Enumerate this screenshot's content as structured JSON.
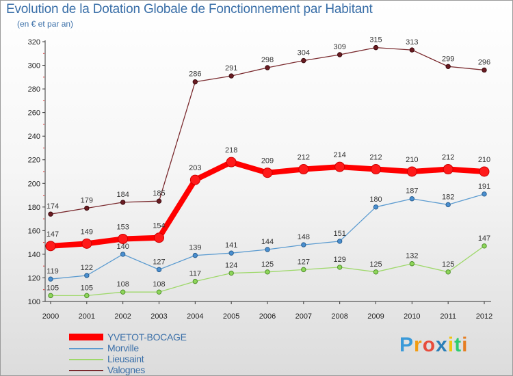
{
  "header": {
    "title": "Evolution de la Dotation Globale de Fonctionnement par Habitant",
    "subtitle": "(en € et par an)"
  },
  "chart_data": {
    "type": "line",
    "title": "Evolution de la Dotation Globale de Fonctionnement par Habitant",
    "subtitle": "(en € et par an)",
    "xlabel": "",
    "ylabel": "",
    "x": [
      "2000",
      "2001",
      "2002",
      "2003",
      "2004",
      "2005",
      "2006",
      "2007",
      "2008",
      "2009",
      "2010",
      "2011",
      "2012"
    ],
    "ylim": [
      100,
      320
    ],
    "yticks": [
      100,
      120,
      140,
      160,
      180,
      200,
      220,
      240,
      260,
      280,
      300,
      320
    ],
    "grid": false,
    "legend_position": "bottom-left",
    "series": [
      {
        "name": "Valognes",
        "color": "#7a2a2e",
        "values": [
          174,
          179,
          184,
          185,
          286,
          291,
          298,
          304,
          309,
          315,
          313,
          299,
          296
        ]
      },
      {
        "name": "YVETOT-BOCAGE",
        "color": "#ff0000",
        "values": [
          147,
          149,
          153,
          154,
          203,
          218,
          209,
          212,
          214,
          212,
          210,
          212,
          210
        ]
      },
      {
        "name": "Morville",
        "color": "#5b9bd0",
        "values": [
          119,
          122,
          140,
          127,
          139,
          141,
          144,
          148,
          151,
          180,
          187,
          182,
          191
        ]
      },
      {
        "name": "Lieusaint",
        "color": "#9ed86a",
        "values": [
          105,
          105,
          108,
          108,
          117,
          124,
          125,
          127,
          129,
          125,
          132,
          125,
          147
        ]
      }
    ]
  },
  "legend": {
    "items": [
      {
        "label": "YVETOT-BOCAGE",
        "color": "#ff0000"
      },
      {
        "label": "Morville",
        "color": "#5b9bd0"
      },
      {
        "label": "Lieusaint",
        "color": "#9ed86a"
      },
      {
        "label": "Valognes",
        "color": "#7a2a2e"
      }
    ]
  },
  "brand": {
    "letters": [
      "P",
      "r",
      "o",
      "x",
      "i",
      "t",
      "i"
    ],
    "colors": [
      "#3a9ad9",
      "#f39c12",
      "#e74c3c",
      "#2c7fb8",
      "#f1c40f",
      "#2ecc71",
      "#e67e22"
    ]
  }
}
